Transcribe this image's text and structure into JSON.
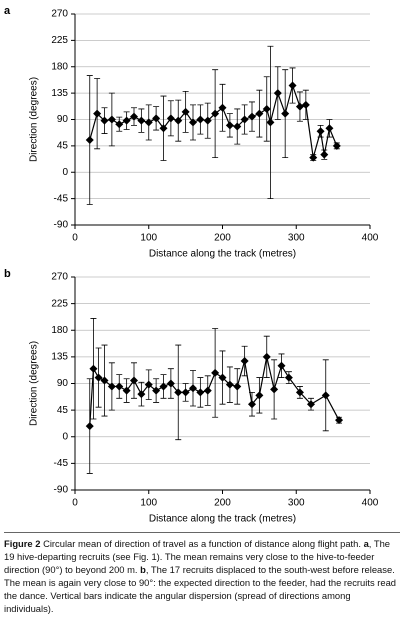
{
  "chart_data": [
    {
      "type": "line",
      "panel_label": "a",
      "xlabel": "Distance along the track (metres)",
      "ylabel": "Direction (degrees)",
      "x": [
        20,
        30,
        40,
        50,
        60,
        70,
        80,
        90,
        100,
        110,
        120,
        130,
        140,
        150,
        160,
        170,
        180,
        190,
        200,
        210,
        220,
        230,
        240,
        250,
        260,
        265,
        275,
        285,
        295,
        305,
        313,
        323,
        333,
        338,
        345,
        355
      ],
      "values": [
        55,
        100,
        88,
        90,
        82,
        88,
        95,
        88,
        85,
        92,
        75,
        92,
        88,
        103,
        85,
        90,
        88,
        100,
        110,
        80,
        78,
        90,
        95,
        100,
        108,
        85,
        135,
        100,
        148,
        112,
        115,
        25,
        70,
        30,
        75,
        45
      ],
      "errors": [
        110,
        60,
        22,
        45,
        12,
        15,
        15,
        20,
        30,
        20,
        55,
        30,
        35,
        35,
        30,
        25,
        30,
        75,
        40,
        20,
        30,
        25,
        25,
        40,
        55,
        130,
        45,
        75,
        30,
        25,
        25,
        5,
        10,
        8,
        15,
        5
      ],
      "xlim": [
        0,
        400
      ],
      "xticks": [
        0,
        100,
        200,
        300,
        400
      ],
      "ylim": [
        -90,
        270
      ],
      "yticks": [
        -90,
        -45,
        0,
        45,
        90,
        135,
        180,
        225,
        270
      ],
      "grid": true,
      "color": "#000000",
      "marker": "diamond"
    },
    {
      "type": "line",
      "panel_label": "b",
      "xlabel": "Distance along the track (metres)",
      "ylabel": "Direction (degrees)",
      "x": [
        20,
        25,
        32,
        40,
        50,
        60,
        70,
        80,
        90,
        100,
        110,
        120,
        130,
        140,
        150,
        160,
        170,
        180,
        190,
        200,
        210,
        220,
        230,
        240,
        250,
        260,
        270,
        280,
        290,
        305,
        320,
        340,
        358
      ],
      "values": [
        18,
        115,
        100,
        95,
        85,
        85,
        78,
        95,
        72,
        88,
        78,
        85,
        90,
        75,
        75,
        82,
        75,
        78,
        108,
        100,
        88,
        85,
        128,
        55,
        70,
        135,
        80,
        120,
        100,
        75,
        55,
        70,
        28
      ],
      "errors": [
        80,
        85,
        50,
        60,
        40,
        20,
        20,
        30,
        20,
        25,
        20,
        20,
        25,
        80,
        15,
        30,
        25,
        25,
        75,
        45,
        30,
        30,
        25,
        20,
        30,
        35,
        50,
        20,
        10,
        10,
        10,
        60,
        5
      ],
      "xlim": [
        0,
        400
      ],
      "xticks": [
        0,
        100,
        200,
        300,
        400
      ],
      "ylim": [
        -90,
        270
      ],
      "yticks": [
        -90,
        -45,
        0,
        45,
        90,
        135,
        180,
        225,
        270
      ],
      "grid": true,
      "color": "#000000",
      "marker": "diamond"
    }
  ],
  "caption": [
    {
      "text": "Figure 2",
      "bold": true
    },
    {
      "text": " Circular mean of direction of travel as a function of distance along flight path. ",
      "bold": false
    },
    {
      "text": "a",
      "bold": true
    },
    {
      "text": ", The 19 hive-departing recruits (see Fig. 1). The mean remains very close to the hive-to-feeder direction (90°) to beyond 200 m. ",
      "bold": false
    },
    {
      "text": "b",
      "bold": true
    },
    {
      "text": ", The 17 recruits displaced to the south-west before release. The mean is again very close to 90°: the expected direction to the feeder, had the recruits read the dance. Vertical bars indicate the angular dispersion (spread of directions among individuals).",
      "bold": false
    }
  ]
}
